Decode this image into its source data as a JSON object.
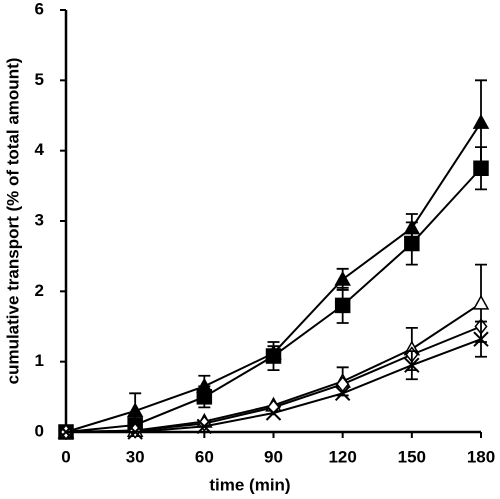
{
  "chart_data": {
    "type": "line",
    "x_label": "time (min)",
    "y_label": "cumulative transport (% of total amount)",
    "x": [
      0,
      30,
      60,
      90,
      120,
      150,
      180
    ],
    "xlim": [
      0,
      180
    ],
    "xticks": [
      0,
      30,
      60,
      90,
      120,
      150,
      180
    ],
    "ylim": [
      0,
      6
    ],
    "yticks": [
      0,
      1,
      2,
      3,
      4,
      5,
      6
    ],
    "series": [
      {
        "color": "#000000",
        "marker": "triangle-filled",
        "values": [
          0,
          0.3,
          0.65,
          1.12,
          2.17,
          2.9,
          4.4
        ],
        "errors": [
          null,
          0.25,
          0.15,
          0.1,
          0.15,
          0.2,
          0.6
        ]
      },
      {
        "color": "#000000",
        "marker": "square-filled",
        "values": [
          0,
          0.1,
          0.5,
          1.08,
          1.8,
          2.68,
          3.75
        ],
        "errors": [
          null,
          null,
          0.15,
          0.2,
          0.25,
          0.3,
          0.3
        ]
      },
      {
        "color": "#000000",
        "marker": "triangle-open",
        "values": [
          0,
          0.02,
          0.15,
          0.38,
          0.72,
          1.18,
          1.83
        ],
        "errors": [
          null,
          null,
          null,
          null,
          0.2,
          0.3,
          0.55
        ]
      },
      {
        "color": "#000000",
        "marker": "diamond-open",
        "values": [
          0,
          0.02,
          0.12,
          0.35,
          0.68,
          1.1,
          1.5
        ],
        "errors": [
          null,
          null,
          null,
          null,
          null,
          null,
          null
        ]
      },
      {
        "color": "#000000",
        "marker": "cross",
        "values": [
          0,
          0,
          0.08,
          0.27,
          0.55,
          0.95,
          1.32
        ],
        "errors": [
          null,
          null,
          null,
          null,
          null,
          0.2,
          0.25
        ]
      }
    ]
  }
}
